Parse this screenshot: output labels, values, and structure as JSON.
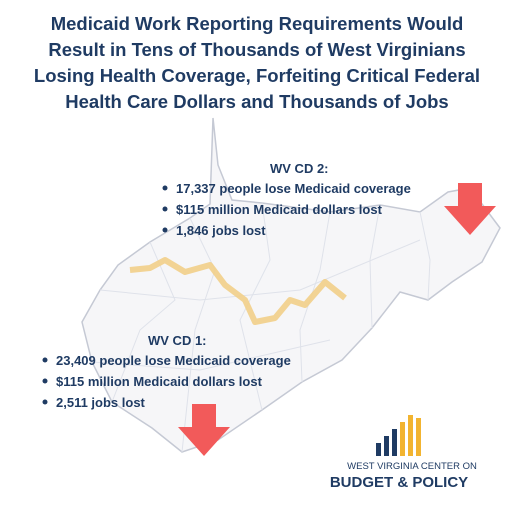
{
  "title_lines": [
    "Medicaid Work Reporting Requirements Would",
    "Result in Tens of Thousands of West Virginians",
    "Losing Health Coverage, Forfeiting Critical Federal",
    "Health Care Dollars and Thousands of Jobs"
  ],
  "districts": [
    {
      "heading": "WV CD 2:",
      "items": [
        "17,337 people lose Medicaid coverage",
        "$115 million Medicaid dollars lost",
        "1,846 jobs lost"
      ]
    },
    {
      "heading": "WV CD 1:",
      "items": [
        "23,409 people lose Medicaid coverage",
        "$115 million Medicaid dollars lost",
        "2,511 jobs lost"
      ]
    }
  ],
  "logo": {
    "line1": "WEST VIRGINIA CENTER ON",
    "line2": "BUDGET & POLICY"
  }
}
